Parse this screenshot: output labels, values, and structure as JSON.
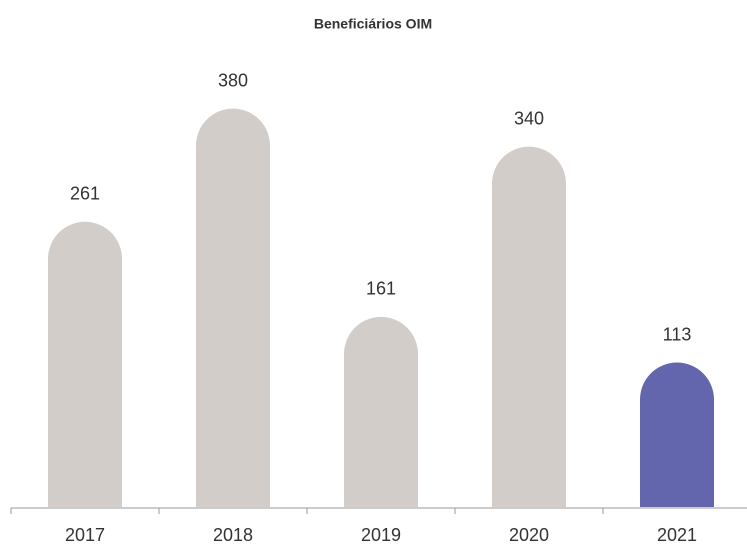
{
  "chart_data": {
    "type": "bar",
    "title": "Beneficiários OIM",
    "categories": [
      "2017",
      "2018",
      "2019",
      "2020",
      "2021"
    ],
    "values": [
      261,
      380,
      161,
      340,
      113
    ],
    "colors": [
      "#d3cdc9",
      "#d3cdc9",
      "#d3cdc9",
      "#d3cdc9",
      "#6366ad"
    ],
    "ylim": [
      0,
      400
    ]
  }
}
